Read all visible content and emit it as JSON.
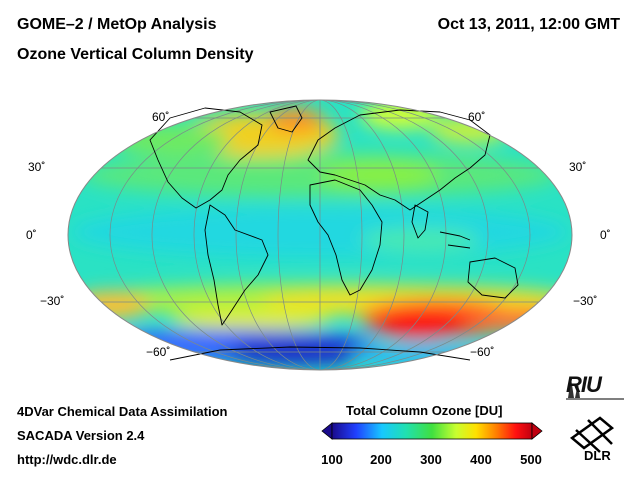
{
  "header": {
    "title": "GOME–2 / MetOp Analysis",
    "subtitle": "Ozone Vertical Column Density",
    "datetime": "Oct 13, 2011, 12:00 GMT"
  },
  "map": {
    "projection": "Mollweide",
    "latitude_labels": [
      "60˚",
      "30˚",
      "0˚",
      "−30˚",
      "−60˚"
    ],
    "graticule_step_deg": 30
  },
  "colorbar": {
    "title": "Total Column Ozone [DU]",
    "ticks": [
      "100",
      "200",
      "300",
      "400",
      "500"
    ],
    "range": [
      100,
      500
    ],
    "colors": [
      "#1a0a8c",
      "#2040ff",
      "#18c8ff",
      "#20e0b0",
      "#40e040",
      "#c8ff30",
      "#ffe000",
      "#ff8000",
      "#ff1010",
      "#c00010"
    ]
  },
  "footer": {
    "line1": "4DVar Chemical Data Assimilation",
    "line2": "SACADA Version 2.4",
    "line3": "http://wdc.dlr.de"
  },
  "logos": {
    "riu": "RIU",
    "dlr": "DLR"
  }
}
